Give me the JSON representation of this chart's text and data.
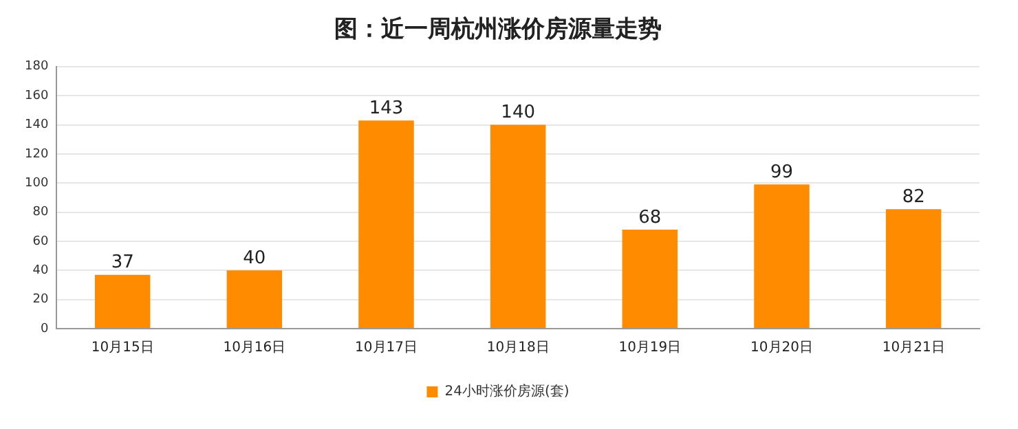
{
  "chart_data": {
    "type": "bar",
    "title": "图：近一周杭州涨价房源量走势",
    "categories": [
      "10月15日",
      "10月16日",
      "10月17日",
      "10月18日",
      "10月19日",
      "10月20日",
      "10月21日"
    ],
    "series": [
      {
        "name": "24小时涨价房源(套)",
        "color": "#ff8c00",
        "values": [
          37,
          40,
          143,
          140,
          68,
          99,
          82
        ]
      }
    ],
    "ylim": [
      0,
      180
    ],
    "yticks": [
      0,
      20,
      40,
      60,
      80,
      100,
      120,
      140,
      160,
      180
    ],
    "grid": "y",
    "legend": "bottom",
    "data_labels": true
  }
}
